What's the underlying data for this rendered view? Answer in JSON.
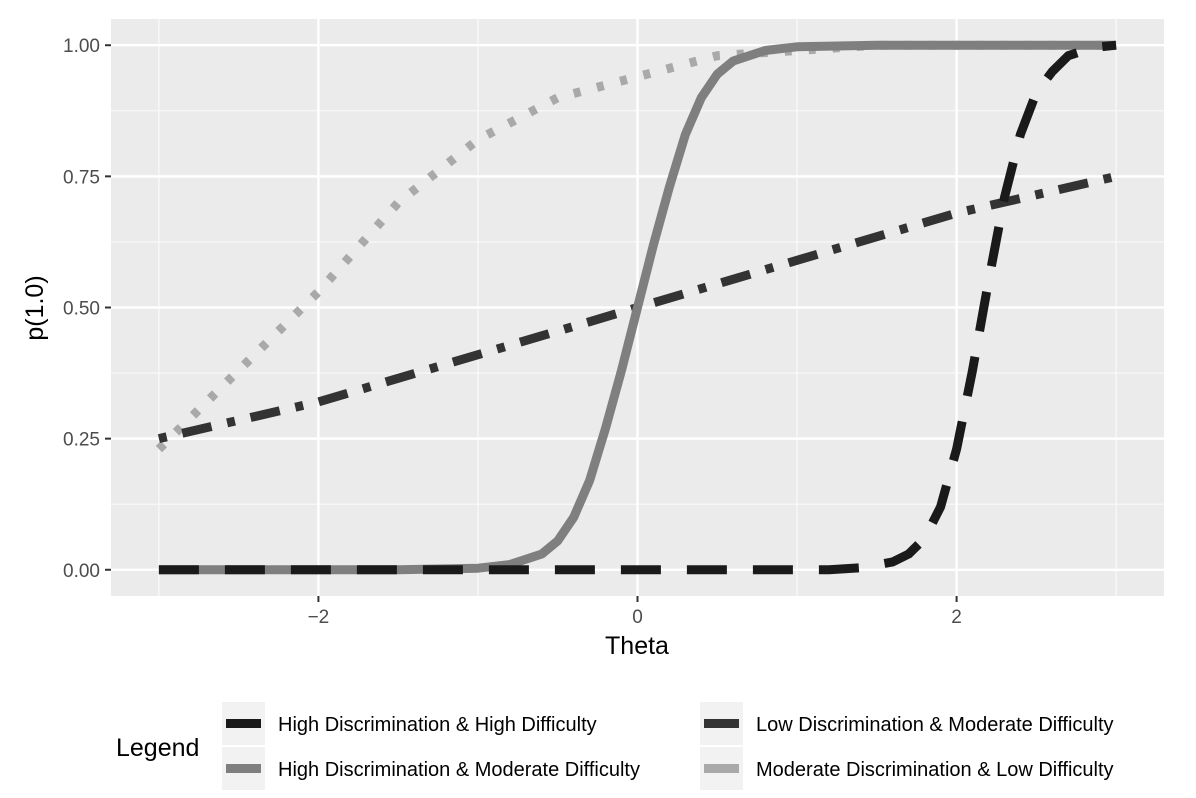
{
  "chart_data": {
    "type": "line",
    "title": "",
    "xlabel": "Theta",
    "ylabel": "p(1.0)",
    "xlim": [
      -3.3,
      3.3
    ],
    "ylim": [
      -0.05,
      1.05
    ],
    "x_ticks": [
      {
        "value": -2,
        "label": "−2"
      },
      {
        "value": 0,
        "label": "0"
      },
      {
        "value": 2,
        "label": "2"
      }
    ],
    "y_ticks": [
      {
        "value": 0.0,
        "label": "0.00"
      },
      {
        "value": 0.25,
        "label": "0.25"
      },
      {
        "value": 0.5,
        "label": "0.50"
      },
      {
        "value": 0.75,
        "label": "0.75"
      },
      {
        "value": 1.0,
        "label": "1.00"
      }
    ],
    "grid": true,
    "legend": {
      "title": "Legend",
      "position": "bottom"
    },
    "series": [
      {
        "name": "High Discrimination & High Difficulty",
        "color": "#1a1a1a",
        "dash": "longdash",
        "x": [
          -3.0,
          -2.5,
          -2.0,
          -1.5,
          -1.0,
          -0.5,
          0.0,
          0.5,
          1.0,
          1.2,
          1.4,
          1.6,
          1.7,
          1.8,
          1.9,
          2.0,
          2.1,
          2.2,
          2.3,
          2.4,
          2.5,
          2.6,
          2.7,
          2.8,
          2.9,
          3.0
        ],
        "y": [
          0.0,
          0.0,
          0.0,
          0.0,
          0.0,
          0.0,
          0.0,
          0.0,
          0.0,
          0.0,
          0.004,
          0.015,
          0.03,
          0.06,
          0.12,
          0.23,
          0.38,
          0.55,
          0.71,
          0.83,
          0.91,
          0.95,
          0.98,
          0.99,
          0.997,
          1.0
        ]
      },
      {
        "name": "High Discrimination & Moderate Difficulty",
        "color": "#7f7f7f",
        "dash": "solid",
        "x": [
          -3.0,
          -2.0,
          -1.5,
          -1.0,
          -0.8,
          -0.6,
          -0.5,
          -0.4,
          -0.3,
          -0.2,
          -0.1,
          0.0,
          0.1,
          0.2,
          0.3,
          0.4,
          0.5,
          0.6,
          0.8,
          1.0,
          1.5,
          2.0,
          3.0
        ],
        "y": [
          0.0,
          0.0,
          0.0,
          0.003,
          0.01,
          0.03,
          0.055,
          0.1,
          0.17,
          0.27,
          0.38,
          0.5,
          0.62,
          0.73,
          0.83,
          0.9,
          0.945,
          0.97,
          0.99,
          0.997,
          1.0,
          1.0,
          1.0
        ]
      },
      {
        "name": "Low Discrimination & Moderate Difficulty",
        "color": "#333333",
        "dash": "dotdash",
        "x": [
          -3.0,
          -2.0,
          -1.0,
          0.0,
          1.0,
          2.0,
          3.0
        ],
        "y": [
          0.25,
          0.32,
          0.41,
          0.5,
          0.59,
          0.68,
          0.75
        ]
      },
      {
        "name": "Moderate Discrimination & Low Difficulty",
        "color": "#a9a9a9",
        "dash": "dotted",
        "x": [
          -3.0,
          -2.5,
          -2.0,
          -1.5,
          -1.0,
          -0.5,
          0.0,
          0.5,
          1.0,
          1.5,
          2.0,
          3.0
        ],
        "y": [
          0.23,
          0.38,
          0.53,
          0.7,
          0.82,
          0.9,
          0.94,
          0.98,
          0.99,
          1.0,
          1.0,
          1.0
        ]
      }
    ]
  }
}
